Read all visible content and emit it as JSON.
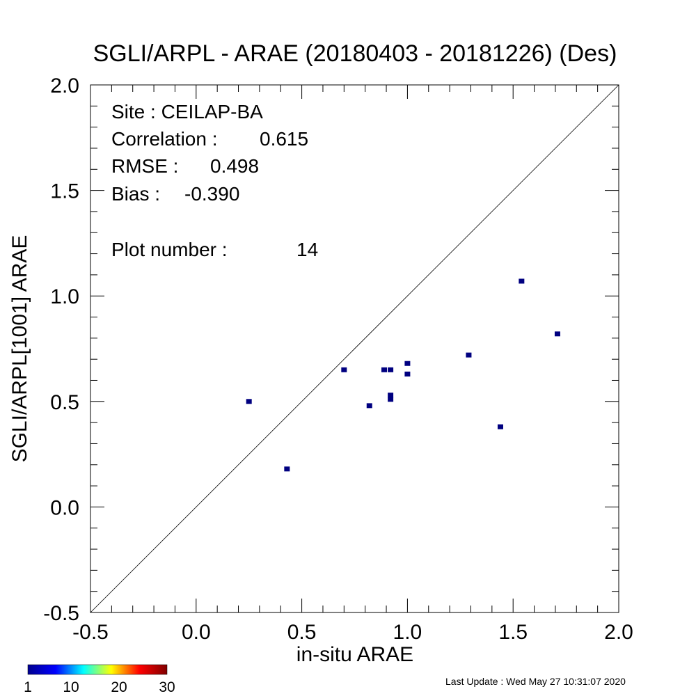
{
  "chart_data": {
    "type": "scatter",
    "title": "SGLI/ARPL - ARAE (20180403 - 20181226) (Des)",
    "xlabel": "in-situ ARAE",
    "ylabel": "SGLI/ARPL[1001]    ARAE",
    "xlim": [
      -0.5,
      2.0
    ],
    "ylim": [
      -0.5,
      2.0
    ],
    "xticks": [
      "-0.5",
      "0.0",
      "0.5",
      "1.0",
      "1.5",
      "2.0"
    ],
    "yticks": [
      "-0.5",
      "0.0",
      "0.5",
      "1.0",
      "1.5",
      "2.0"
    ],
    "grid": false,
    "reference_line": "1:1",
    "point_color": "#000080",
    "points": [
      {
        "x": 0.25,
        "y": 0.5
      },
      {
        "x": 0.43,
        "y": 0.18
      },
      {
        "x": 0.7,
        "y": 0.65
      },
      {
        "x": 0.82,
        "y": 0.48
      },
      {
        "x": 0.89,
        "y": 0.65
      },
      {
        "x": 0.92,
        "y": 0.65
      },
      {
        "x": 0.92,
        "y": 0.53
      },
      {
        "x": 0.92,
        "y": 0.51
      },
      {
        "x": 1.0,
        "y": 0.68
      },
      {
        "x": 1.0,
        "y": 0.63
      },
      {
        "x": 1.29,
        "y": 0.72
      },
      {
        "x": 1.44,
        "y": 0.38
      },
      {
        "x": 1.54,
        "y": 1.07
      },
      {
        "x": 1.71,
        "y": 0.82
      }
    ],
    "annotations": {
      "site": "Site : CEILAP-BA",
      "correlation_label": "Correlation :",
      "correlation_value": "0.615",
      "rmse_label": "RMSE :",
      "rmse_value": "0.498",
      "bias_label": "Bias :",
      "bias_value": "-0.390",
      "plot_number_label": "Plot number :",
      "plot_number_value": "14"
    },
    "colorbar": {
      "ticks": [
        "1",
        "10",
        "20",
        "30"
      ],
      "range": [
        1,
        30
      ],
      "colors": [
        "#00008f",
        "#0000ff",
        "#00ffff",
        "#ffff00",
        "#ff0000",
        "#800000"
      ]
    }
  },
  "footer": {
    "last_update": "Last Update : Wed May 27 10:31:07 2020"
  }
}
